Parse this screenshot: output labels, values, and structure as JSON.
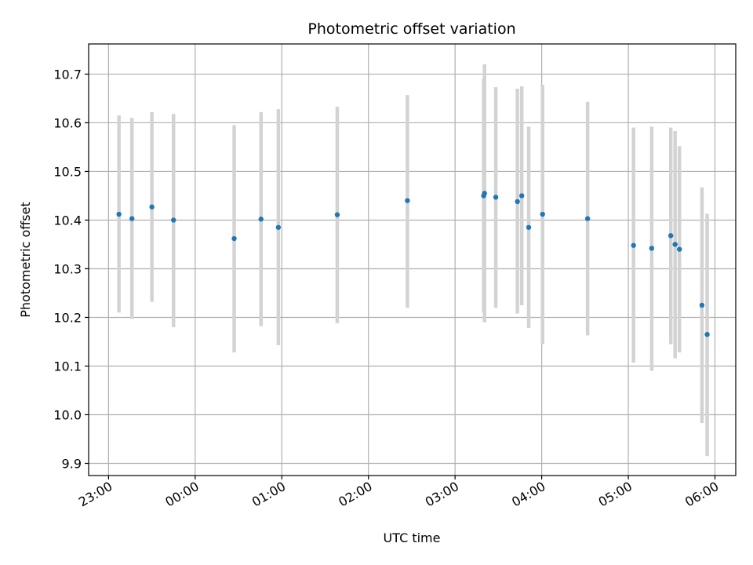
{
  "chart_data": {
    "type": "scatter",
    "title": "Photometric offset variation",
    "xlabel": "UTC time",
    "ylabel": "Photometric offset",
    "x_tick_labels": [
      "23:00",
      "00:00",
      "01:00",
      "02:00",
      "03:00",
      "04:00",
      "05:00",
      "06:00"
    ],
    "x_ticks_hours": [
      0,
      1,
      2,
      3,
      4,
      5,
      6,
      7
    ],
    "xlim_hours": [
      -0.23,
      7.24
    ],
    "y_ticks": [
      9.9,
      10.0,
      10.1,
      10.2,
      10.3,
      10.4,
      10.5,
      10.6,
      10.7
    ],
    "y_tick_labels": [
      "9.9",
      "10.0",
      "10.1",
      "10.2",
      "10.3",
      "10.4",
      "10.5",
      "10.6",
      "10.7"
    ],
    "ylim": [
      9.875,
      10.762
    ],
    "grid": true,
    "colors": {
      "points": "#1f77b4",
      "errorbars": "#d3d3d3",
      "grid": "#b0b0b0"
    },
    "points": [
      {
        "time": "23:07",
        "t": 0.12,
        "y": 10.412,
        "lo": 10.21,
        "hi": 10.615
      },
      {
        "time": "23:16",
        "t": 0.27,
        "y": 10.403,
        "lo": 10.197,
        "hi": 10.61
      },
      {
        "time": "23:30",
        "t": 0.5,
        "y": 10.427,
        "lo": 10.232,
        "hi": 10.622
      },
      {
        "time": "23:45",
        "t": 0.75,
        "y": 10.4,
        "lo": 10.18,
        "hi": 10.618
      },
      {
        "time": "00:27",
        "t": 1.45,
        "y": 10.362,
        "lo": 10.128,
        "hi": 10.595
      },
      {
        "time": "00:45",
        "t": 1.76,
        "y": 10.402,
        "lo": 10.182,
        "hi": 10.622
      },
      {
        "time": "00:57",
        "t": 1.96,
        "y": 10.385,
        "lo": 10.143,
        "hi": 10.628
      },
      {
        "time": "01:38",
        "t": 2.64,
        "y": 10.411,
        "lo": 10.188,
        "hi": 10.633
      },
      {
        "time": "02:27",
        "t": 3.45,
        "y": 10.44,
        "lo": 10.22,
        "hi": 10.657
      },
      {
        "time": "03:20",
        "t": 4.33,
        "y": 10.45,
        "lo": 10.21,
        "hi": 10.69
      },
      {
        "time": "03:20",
        "t": 4.34,
        "y": 10.455,
        "lo": 10.19,
        "hi": 10.72
      },
      {
        "time": "03:28",
        "t": 4.47,
        "y": 10.447,
        "lo": 10.22,
        "hi": 10.673
      },
      {
        "time": "03:43",
        "t": 4.72,
        "y": 10.438,
        "lo": 10.208,
        "hi": 10.67
      },
      {
        "time": "03:46",
        "t": 4.77,
        "y": 10.45,
        "lo": 10.225,
        "hi": 10.675
      },
      {
        "time": "03:51",
        "t": 4.85,
        "y": 10.385,
        "lo": 10.178,
        "hi": 10.592
      },
      {
        "time": "04:00",
        "t": 5.01,
        "y": 10.412,
        "lo": 10.145,
        "hi": 10.678
      },
      {
        "time": "04:31",
        "t": 5.53,
        "y": 10.403,
        "lo": 10.163,
        "hi": 10.643
      },
      {
        "time": "05:04",
        "t": 6.06,
        "y": 10.348,
        "lo": 10.107,
        "hi": 10.59
      },
      {
        "time": "05:16",
        "t": 6.27,
        "y": 10.342,
        "lo": 10.09,
        "hi": 10.592
      },
      {
        "time": "05:29",
        "t": 6.49,
        "y": 10.368,
        "lo": 10.145,
        "hi": 10.59
      },
      {
        "time": "05:32",
        "t": 6.54,
        "y": 10.35,
        "lo": 10.116,
        "hi": 10.583
      },
      {
        "time": "05:35",
        "t": 6.59,
        "y": 10.34,
        "lo": 10.128,
        "hi": 10.552
      },
      {
        "time": "05:51",
        "t": 6.85,
        "y": 10.225,
        "lo": 9.983,
        "hi": 10.467
      },
      {
        "time": "05:54",
        "t": 6.91,
        "y": 10.165,
        "lo": 9.915,
        "hi": 10.413
      }
    ]
  }
}
